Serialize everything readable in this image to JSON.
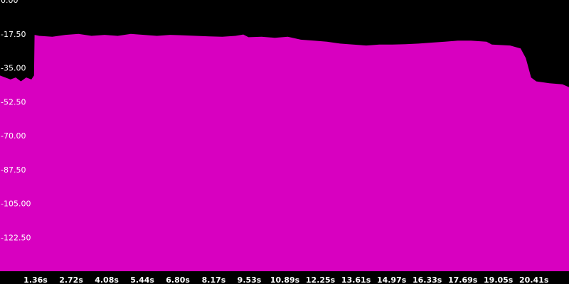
{
  "chart_data": {
    "type": "area",
    "title": "",
    "xlabel": "",
    "ylabel": "",
    "ylim": [
      -140,
      0
    ],
    "xlim": [
      0,
      21.75
    ],
    "yticks": [
      {
        "value": 0,
        "label": "0.00"
      },
      {
        "value": -17.5,
        "label": "-17.50"
      },
      {
        "value": -35,
        "label": "-35.00"
      },
      {
        "value": -52.5,
        "label": "-52.50"
      },
      {
        "value": -70,
        "label": "-70.00"
      },
      {
        "value": -87.5,
        "label": "-87.50"
      },
      {
        "value": -105,
        "label": "-105.00"
      },
      {
        "value": -122.5,
        "label": "-122.50"
      }
    ],
    "xticks": [
      {
        "value": 1.36,
        "label": "1.36s"
      },
      {
        "value": 2.72,
        "label": "2.72s"
      },
      {
        "value": 4.08,
        "label": "4.08s"
      },
      {
        "value": 5.44,
        "label": "5.44s"
      },
      {
        "value": 6.8,
        "label": "6.80s"
      },
      {
        "value": 8.17,
        "label": "8.17s"
      },
      {
        "value": 9.53,
        "label": "9.53s"
      },
      {
        "value": 10.89,
        "label": "10.89s"
      },
      {
        "value": 12.25,
        "label": "12.25s"
      },
      {
        "value": 13.61,
        "label": "13.61s"
      },
      {
        "value": 14.97,
        "label": "14.97s"
      },
      {
        "value": 16.33,
        "label": "16.33s"
      },
      {
        "value": 17.69,
        "label": "17.69s"
      },
      {
        "value": 19.05,
        "label": "19.05s"
      },
      {
        "value": 20.41,
        "label": "20.41s"
      }
    ],
    "colors": {
      "fill": "#d800c0",
      "background": "#000000",
      "text": "#ffffff"
    },
    "series": [
      {
        "x": [
          0,
          0.2,
          0.4,
          0.6,
          0.8,
          1.0,
          1.2,
          1.3,
          1.32,
          1.5,
          2.0,
          2.5,
          3.0,
          3.5,
          4.0,
          4.5,
          5.0,
          5.5,
          6.0,
          6.5,
          7.0,
          7.5,
          8.0,
          8.5,
          9.0,
          9.3,
          9.5,
          10.0,
          10.5,
          11.0,
          11.5,
          12.0,
          12.5,
          13.0,
          13.5,
          14.0,
          14.5,
          15.0,
          15.5,
          16.0,
          16.5,
          17.0,
          17.5,
          18.0,
          18.6,
          18.8,
          19.5,
          19.9,
          20.1,
          20.3,
          20.5,
          21.0,
          21.5,
          21.75
        ],
        "y": [
          -39,
          -40,
          -41,
          -40,
          -42,
          -40,
          -41,
          -39,
          -18,
          -18.5,
          -19,
          -18,
          -17.5,
          -18.5,
          -18,
          -18.5,
          -17.5,
          -18,
          -18.5,
          -18,
          -18.2,
          -18.5,
          -18.8,
          -19,
          -18.5,
          -17.8,
          -19.2,
          -19,
          -19.5,
          -19,
          -20.5,
          -21,
          -21.5,
          -22.5,
          -23,
          -23.5,
          -23,
          -23,
          -22.8,
          -22.5,
          -22,
          -21.5,
          -21,
          -21,
          -21.5,
          -23,
          -23.5,
          -25,
          -30,
          -40,
          -42,
          -43,
          -43.5,
          -45
        ]
      }
    ]
  }
}
